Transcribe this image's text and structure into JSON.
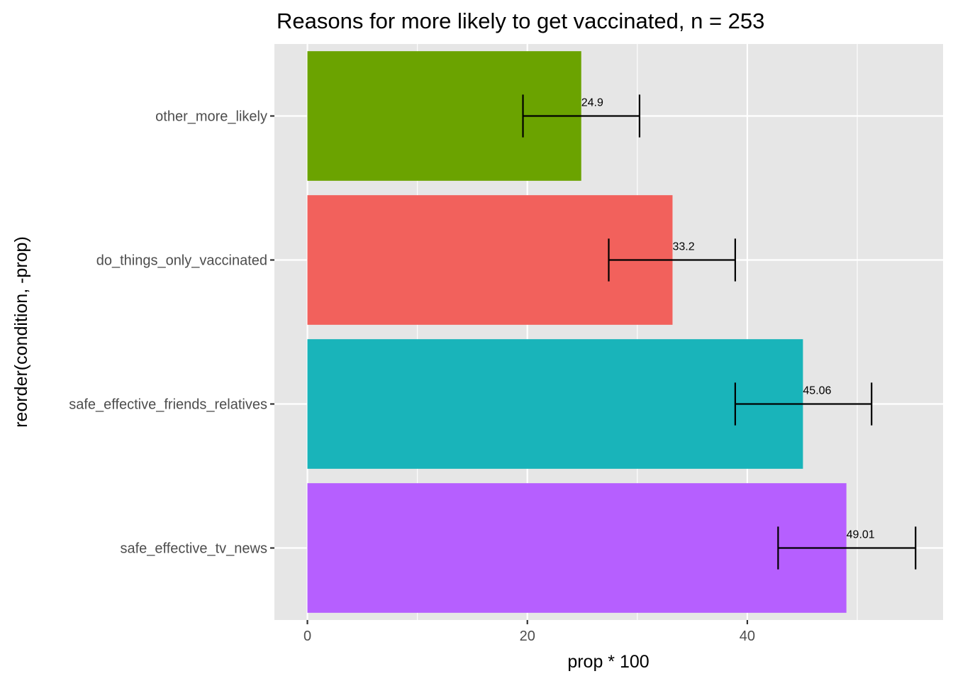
{
  "chart_data": {
    "type": "bar",
    "orientation": "horizontal",
    "title": "Reasons for more likely to get vaccinated, n = 253",
    "xlabel": "prop * 100",
    "ylabel": "reorder(condition, -prop)",
    "xlim": [
      -3.0,
      57.8
    ],
    "x_ticks": [
      0,
      20,
      40
    ],
    "x_tick_labels": [
      "0",
      "20",
      "40"
    ],
    "grid": true,
    "legend": "none",
    "categories": [
      "other_more_likely",
      "do_things_only_vaccinated",
      "safe_effective_friends_relatives",
      "safe_effective_tv_news"
    ],
    "values": [
      24.9,
      33.2,
      45.06,
      49.01
    ],
    "value_labels": [
      "24.9",
      "33.2",
      "45.06",
      "49.01"
    ],
    "error_low": [
      19.6,
      27.4,
      38.9,
      42.8
    ],
    "error_high": [
      30.2,
      38.9,
      51.3,
      55.3
    ],
    "colors": [
      "#6BA300",
      "#F2615C",
      "#19B4BA",
      "#B65FFF"
    ],
    "panel_background": "#E6E6E6",
    "grid_color": "#FFFFFF"
  }
}
